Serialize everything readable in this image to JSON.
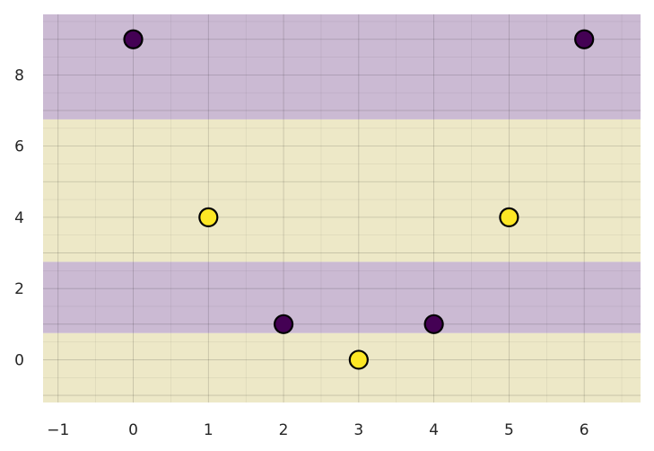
{
  "chart_data": {
    "type": "scatter",
    "title": "",
    "xlabel": "",
    "ylabel": "",
    "xlim": [
      -1.2,
      6.75
    ],
    "ylim": [
      -1.2,
      9.7
    ],
    "x_ticks": [
      -1,
      0,
      1,
      2,
      3,
      4,
      5,
      6
    ],
    "x_tick_labels": [
      "−1",
      "0",
      "1",
      "2",
      "3",
      "4",
      "5",
      "6"
    ],
    "y_ticks": [
      0,
      2,
      4,
      6,
      8
    ],
    "y_tick_labels": [
      "0",
      "2",
      "4",
      "6",
      "8"
    ],
    "grid": true,
    "background_regions": [
      {
        "class": 1,
        "y_from": -1.2,
        "y_to": 0.75
      },
      {
        "class": 0,
        "y_from": 0.75,
        "y_to": 2.75
      },
      {
        "class": 1,
        "y_from": 2.75,
        "y_to": 6.75
      },
      {
        "class": 0,
        "y_from": 6.75,
        "y_to": 9.7
      }
    ],
    "class_colors": {
      "0": "#440154",
      "1": "#fde725"
    },
    "region_colors": {
      "0": "#cbbad3",
      "1": "#ede8c7"
    },
    "points": [
      {
        "x": 0,
        "y": 9,
        "class": 0
      },
      {
        "x": 6,
        "y": 9,
        "class": 0
      },
      {
        "x": 1,
        "y": 4,
        "class": 1
      },
      {
        "x": 5,
        "y": 4,
        "class": 1
      },
      {
        "x": 2,
        "y": 1,
        "class": 0
      },
      {
        "x": 4,
        "y": 1,
        "class": 0
      },
      {
        "x": 3,
        "y": 0,
        "class": 1
      }
    ]
  }
}
